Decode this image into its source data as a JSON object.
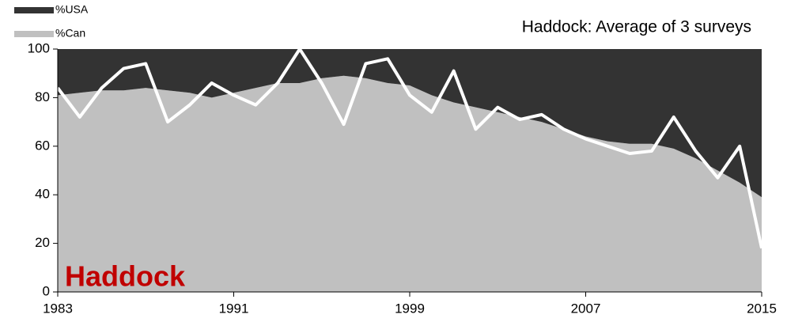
{
  "chart_data": {
    "type": "area",
    "stacked": true,
    "title": "Haddock: Average of 3 surveys",
    "annotation": "Haddock",
    "x": [
      1983,
      1984,
      1985,
      1986,
      1987,
      1988,
      1989,
      1990,
      1991,
      1992,
      1993,
      1994,
      1995,
      1996,
      1997,
      1998,
      1999,
      2000,
      2001,
      2002,
      2003,
      2004,
      2005,
      2006,
      2007,
      2008,
      2009,
      2010,
      2011,
      2012,
      2013,
      2014,
      2015
    ],
    "series": [
      {
        "name": "%USA",
        "color": "#333333",
        "values": [
          19,
          18,
          17,
          17,
          16,
          17,
          18,
          20,
          18,
          16,
          14,
          14,
          12,
          11,
          12,
          14,
          15,
          19,
          22,
          24,
          26,
          28,
          30,
          33,
          36,
          38,
          39,
          39,
          41,
          45,
          50,
          55,
          61
        ]
      },
      {
        "name": "%Can",
        "color": "#c0c0c0",
        "values": [
          81,
          82,
          83,
          83,
          84,
          83,
          82,
          80,
          82,
          84,
          86,
          86,
          88,
          89,
          88,
          86,
          85,
          81,
          78,
          76,
          74,
          72,
          70,
          67,
          64,
          62,
          61,
          61,
          59,
          55,
          50,
          45,
          39
        ]
      },
      {
        "type": "line",
        "color": "#ffffff",
        "values": [
          84,
          72,
          84,
          92,
          94,
          70,
          77,
          86,
          81,
          77,
          86,
          100,
          86,
          69,
          94,
          96,
          81,
          74,
          91,
          67,
          76,
          71,
          73,
          67,
          63,
          60,
          57,
          58,
          72,
          58,
          47,
          60,
          18
        ]
      }
    ],
    "xlim": [
      1983,
      2015
    ],
    "xticks": [
      1983,
      1991,
      1999,
      2007,
      2015
    ],
    "ylim": [
      0,
      100
    ],
    "yticks": [
      0,
      20,
      40,
      60,
      80,
      100
    ],
    "legend": "top-left",
    "annotation_color": "#c00000"
  }
}
